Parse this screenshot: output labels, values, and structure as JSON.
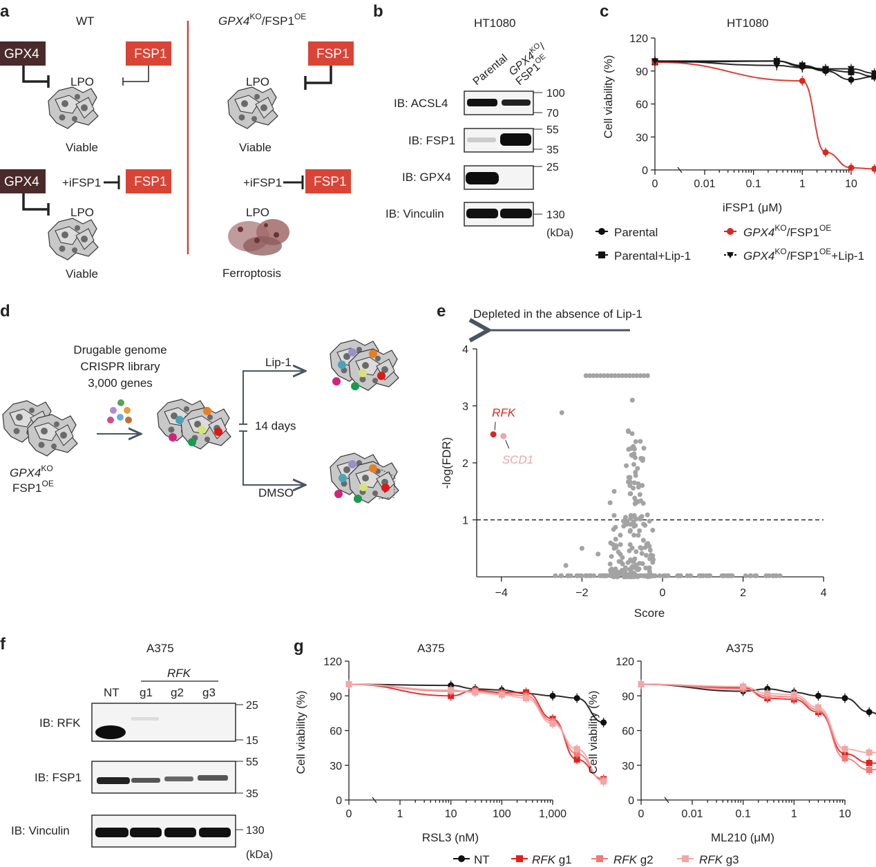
{
  "panels": {
    "a": "a",
    "b": "b",
    "c": "c",
    "d": "d",
    "e": "e",
    "f": "f",
    "g": "g"
  },
  "panel_a": {
    "wt_title": "WT",
    "ko_title_main": "GPX4",
    "ko_title_sup": "KO",
    "ko_title_rest": "/FSP1",
    "ko_title_sup2": "OE",
    "gpx4": "GPX4",
    "fsp1": "FSP1",
    "lpo": "LPO",
    "ifsp1": "+iFSP1",
    "viable": "Viable",
    "ferroptosis": "Ferroptosis"
  },
  "panel_b": {
    "title": "HT1080",
    "lane1": "Parental",
    "lane2_main": "GPX4",
    "lane2_sup": "KO",
    "lane2_slash": "/",
    "lane2_b": "FSP1",
    "lane2_bsup": "OE",
    "ib": [
      "IB: ACSL4",
      "IB: FSP1",
      "IB: GPX4",
      "IB: Vinculin"
    ],
    "mw": [
      "100",
      "70",
      "55",
      "35",
      "25",
      "130",
      "(kDa)"
    ]
  },
  "panel_f": {
    "title": "A375",
    "group_label": "RFK",
    "lanes": [
      "NT",
      "g1",
      "g2",
      "g3"
    ],
    "ib": [
      "IB: RFK",
      "IB: FSP1",
      "IB: Vinculin"
    ],
    "mw": [
      "25",
      "15",
      "55",
      "35",
      "130",
      "(kDa)"
    ]
  },
  "panel_d": {
    "library": [
      "Drugable genome",
      "CRISPR library",
      "3,000 genes"
    ],
    "cell_main": "GPX4",
    "cell_sup": "KO",
    "cell_b": "FSP1",
    "cell_bsup": "OE",
    "lip1": "Lip-1",
    "days": "14 days",
    "dmso": "DMSO"
  },
  "panel_c_legend": {
    "parental": "Parental",
    "parental_lip": "Parental+Lip-1",
    "ko_main": "GPX4",
    "ko_sup": "KO",
    "ko_rest": "/FSP1",
    "ko_sup2": "OE",
    "ko_lip_suffix": "+Lip-1"
  },
  "panel_g_legend": {
    "nt": "NT",
    "rfk": "RFK",
    "g1": " g1",
    "g2": " g2",
    "g3": " g3"
  },
  "colors": {
    "black": "#111111",
    "red": "#d9281f",
    "g1": "#e0201e",
    "g2": "#ef7a78",
    "g3": "#f3a6a4",
    "grey": "#a3a3a3",
    "gpx4_box": "#4a2a2a",
    "fsp1_box": "#d94436",
    "arrow": "#4a5563"
  },
  "chart_data": [
    {
      "id": "c",
      "type": "line",
      "title": "HT1080",
      "xlabel": "iFSP1 (μM)",
      "ylabel": "Cell viability (%)",
      "x_scale": "log",
      "x_ticks": [
        "0",
        "0.01",
        "0.1",
        "1",
        "10"
      ],
      "y_ticks": [
        0,
        30,
        60,
        90,
        120
      ],
      "ylim": [
        0,
        120
      ],
      "series": [
        {
          "name": "Parental",
          "marker": "circle",
          "x": [
            0,
            0.03,
            0.1,
            0.3,
            1,
            3,
            10
          ],
          "y": [
            99,
            99,
            94,
            90,
            82,
            85,
            80
          ]
        },
        {
          "name": "Parental+Lip-1",
          "marker": "square",
          "x": [
            0,
            0.03,
            0.1,
            0.3,
            1,
            3,
            10
          ],
          "y": [
            98,
            99,
            95,
            91,
            89,
            85,
            79
          ]
        },
        {
          "name": "GPX4KO/FSP1OE",
          "marker": "circle",
          "x": [
            0,
            0.1,
            0.3,
            1,
            3,
            10
          ],
          "y": [
            98,
            81,
            16,
            2,
            1,
            0
          ]
        },
        {
          "name": "GPX4KO/FSP1OE+Lip-1",
          "marker": "triangle-down",
          "x": [
            0,
            0.03,
            0.1,
            0.3,
            1,
            3,
            10
          ],
          "y": [
            99,
            95,
            93,
            92,
            92,
            88,
            82
          ]
        }
      ]
    },
    {
      "id": "e",
      "type": "scatter",
      "title": "Depleted in the absence of Lip-1",
      "xlabel": "Score",
      "ylabel": "-log(FDR)",
      "xlim": [
        -4,
        4
      ],
      "ylim": [
        0,
        4
      ],
      "x_ticks": [
        "−4",
        "−2",
        "0",
        "2",
        "4"
      ],
      "y_ticks": [
        "1",
        "2",
        "3",
        "4"
      ],
      "threshold": 1,
      "highlighted": [
        {
          "label": "RFK",
          "x": -4.2,
          "y": 2.5
        },
        {
          "label": "SCD1",
          "x": -3.95,
          "y": 2.47
        }
      ],
      "cluster_top_y": 3.53,
      "cluster_top_x_range": [
        -1.9,
        -0.35
      ]
    },
    {
      "id": "g_rsl3",
      "type": "line",
      "title": "A375",
      "xlabel": "RSL3 (nM)",
      "ylabel": "Cell viability (%)",
      "x_scale": "log",
      "x_ticks": [
        "0",
        "1",
        "10",
        "100",
        "1,000"
      ],
      "y_ticks": [
        0,
        30,
        60,
        90,
        120
      ],
      "ylim": [
        0,
        120
      ],
      "series": [
        {
          "name": "NT",
          "x": [
            0,
            1,
            3,
            10,
            30,
            100,
            300,
            1000
          ],
          "y": [
            100,
            99,
            96,
            95,
            92,
            90,
            88,
            67
          ]
        },
        {
          "name": "RFK g1",
          "x": [
            0,
            1,
            3,
            10,
            30,
            100,
            300,
            1000
          ],
          "y": [
            100,
            90,
            95,
            93,
            93,
            70,
            35,
            18
          ]
        },
        {
          "name": "RFK g2",
          "x": [
            0,
            1,
            3,
            10,
            30,
            100,
            300,
            1000
          ],
          "y": [
            100,
            94,
            94,
            92,
            90,
            68,
            40,
            17
          ]
        },
        {
          "name": "RFK g3",
          "x": [
            0,
            1,
            3,
            10,
            30,
            100,
            300,
            1000
          ],
          "y": [
            100,
            95,
            93,
            91,
            88,
            66,
            44,
            16
          ]
        }
      ]
    },
    {
      "id": "g_ml210",
      "type": "line",
      "title": "A375",
      "xlabel": "ML210 (μM)",
      "ylabel": "Cell viability (%)",
      "x_scale": "log",
      "x_ticks": [
        "0",
        "0.01",
        "0.1",
        "1",
        "10"
      ],
      "y_ticks": [
        0,
        30,
        60,
        90,
        120
      ],
      "ylim": [
        0,
        120
      ],
      "series": [
        {
          "name": "NT",
          "x": [
            0,
            0.01,
            0.03,
            0.1,
            0.3,
            1,
            3,
            10
          ],
          "y": [
            100,
            94,
            96,
            93,
            90,
            88,
            76,
            63
          ]
        },
        {
          "name": "RFK g1",
          "x": [
            0,
            0.01,
            0.03,
            0.1,
            0.3,
            1,
            3,
            10
          ],
          "y": [
            100,
            97,
            88,
            87,
            76,
            40,
            32,
            30
          ]
        },
        {
          "name": "RFK g2",
          "x": [
            0,
            0.01,
            0.03,
            0.1,
            0.3,
            1,
            3,
            10
          ],
          "y": [
            100,
            96,
            90,
            89,
            78,
            36,
            26,
            30
          ]
        },
        {
          "name": "RFK g3",
          "x": [
            0,
            0.01,
            0.03,
            0.1,
            0.3,
            1,
            3,
            10
          ],
          "y": [
            100,
            98,
            92,
            91,
            80,
            44,
            41,
            42
          ]
        }
      ]
    }
  ]
}
